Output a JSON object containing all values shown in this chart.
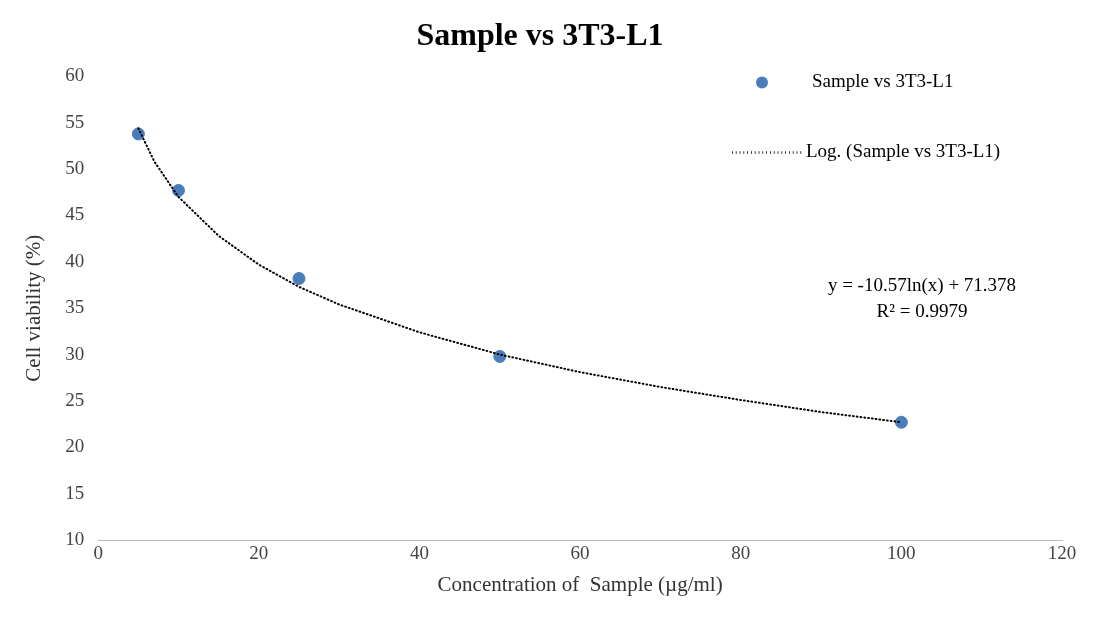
{
  "chart_data": {
    "type": "scatter",
    "title": "Sample vs 3T3-L1",
    "xlabel": "Concentration of  Sample (µg/ml)",
    "ylabel": "Cell viability (%)",
    "x": [
      5,
      10,
      25,
      50,
      100
    ],
    "series": [
      {
        "name": "Sample vs 3T3-L1",
        "color": "#4a7ebb",
        "marker": "circle",
        "values": [
          53.8,
          47.7,
          38.2,
          29.8,
          22.7
        ]
      },
      {
        "name": "Log. (Sample vs 3T3-L1)",
        "type": "line",
        "color": "#000000",
        "line_style": "dotted",
        "marker": "none",
        "x": [
          5,
          7,
          10,
          15,
          20,
          25,
          30,
          40,
          50,
          60,
          70,
          80,
          90,
          100
        ],
        "values": [
          54.4,
          50.8,
          47.0,
          42.8,
          39.7,
          37.3,
          35.4,
          32.4,
          30.0,
          28.1,
          26.5,
          25.1,
          23.8,
          22.7
        ]
      }
    ],
    "xlim": [
      0,
      120
    ],
    "xticks": [
      0,
      20,
      40,
      60,
      80,
      100,
      120
    ],
    "ylim": [
      10,
      60
    ],
    "yticks": [
      10,
      15,
      20,
      25,
      30,
      35,
      40,
      45,
      50,
      55,
      60
    ],
    "grid": false,
    "legend": "top right",
    "annotations": [
      "y = -10.57ln(x) + 71.378",
      "R² = 0.9979"
    ]
  }
}
